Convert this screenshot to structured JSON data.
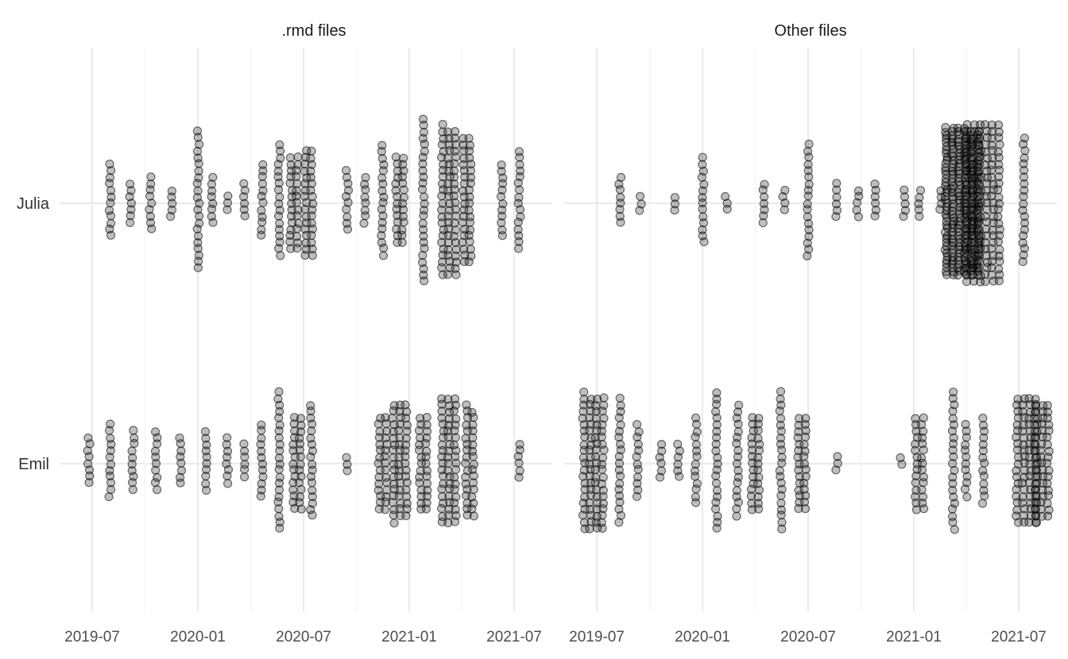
{
  "chart_data": {
    "type": "scatter",
    "variant": "beeswarm",
    "title": "",
    "xlabel": "",
    "ylabel": "",
    "point_color": "#000000",
    "x_tick_labels": [
      "2019-07",
      "2020-01",
      "2020-07",
      "2021-01",
      "2021-07"
    ],
    "y_categories": [
      "Julia",
      "Emil"
    ],
    "xlim": [
      "2019-06-01",
      "2021-08-31"
    ],
    "grid": true,
    "legend": "none",
    "panels": [
      {
        "title": ".rmd files",
        "series": [
          {
            "category": "Julia",
            "clusters": [
              {
                "date": "2019-08-01",
                "count": 12
              },
              {
                "date": "2019-09-05",
                "count": 7
              },
              {
                "date": "2019-10-10",
                "count": 9
              },
              {
                "date": "2019-11-15",
                "count": 5
              },
              {
                "date": "2020-01-01",
                "count": 22
              },
              {
                "date": "2020-01-25",
                "count": 8
              },
              {
                "date": "2020-02-20",
                "count": 3
              },
              {
                "date": "2020-03-20",
                "count": 6
              },
              {
                "date": "2020-04-20",
                "count": 12
              },
              {
                "date": "2020-05-20",
                "count": 18
              },
              {
                "date": "2020-06-15",
                "count": 30
              },
              {
                "date": "2020-07-10",
                "count": 34
              },
              {
                "date": "2020-09-15",
                "count": 10
              },
              {
                "date": "2020-10-15",
                "count": 8
              },
              {
                "date": "2020-11-15",
                "count": 18
              },
              {
                "date": "2020-12-15",
                "count": 28
              },
              {
                "date": "2021-01-25",
                "count": 26
              },
              {
                "date": "2021-03-10",
                "count": 70
              },
              {
                "date": "2021-04-10",
                "count": 40
              },
              {
                "date": "2021-06-10",
                "count": 12
              },
              {
                "date": "2021-07-10",
                "count": 16
              }
            ]
          },
          {
            "category": "Emil",
            "clusters": [
              {
                "date": "2019-06-25",
                "count": 8
              },
              {
                "date": "2019-08-01",
                "count": 12
              },
              {
                "date": "2019-09-10",
                "count": 10
              },
              {
                "date": "2019-10-20",
                "count": 10
              },
              {
                "date": "2019-12-01",
                "count": 8
              },
              {
                "date": "2020-01-15",
                "count": 10
              },
              {
                "date": "2020-02-20",
                "count": 8
              },
              {
                "date": "2020-03-20",
                "count": 6
              },
              {
                "date": "2020-04-20",
                "count": 12
              },
              {
                "date": "2020-05-20",
                "count": 22
              },
              {
                "date": "2020-06-20",
                "count": 30
              },
              {
                "date": "2020-07-15",
                "count": 18
              },
              {
                "date": "2020-09-15",
                "count": 3
              },
              {
                "date": "2020-11-15",
                "count": 30
              },
              {
                "date": "2020-12-15",
                "count": 55
              },
              {
                "date": "2021-01-25",
                "count": 30
              },
              {
                "date": "2021-03-10",
                "count": 60
              },
              {
                "date": "2021-04-15",
                "count": 35
              },
              {
                "date": "2021-07-10",
                "count": 6
              }
            ]
          }
        ]
      },
      {
        "title": "Other files",
        "series": [
          {
            "category": "Julia",
            "clusters": [
              {
                "date": "2019-08-10",
                "count": 8
              },
              {
                "date": "2019-09-15",
                "count": 3
              },
              {
                "date": "2019-11-15",
                "count": 3
              },
              {
                "date": "2020-01-01",
                "count": 14
              },
              {
                "date": "2020-02-10",
                "count": 3
              },
              {
                "date": "2020-04-15",
                "count": 7
              },
              {
                "date": "2020-05-20",
                "count": 4
              },
              {
                "date": "2020-07-01",
                "count": 18
              },
              {
                "date": "2020-08-20",
                "count": 6
              },
              {
                "date": "2020-09-25",
                "count": 5
              },
              {
                "date": "2020-10-25",
                "count": 6
              },
              {
                "date": "2020-12-15",
                "count": 5
              },
              {
                "date": "2021-01-10",
                "count": 5
              },
              {
                "date": "2021-02-15",
                "count": 4
              },
              {
                "date": "2021-03-25",
                "count": 250
              },
              {
                "date": "2021-04-30",
                "count": 150
              },
              {
                "date": "2021-07-10",
                "count": 20
              }
            ]
          },
          {
            "category": "Emil",
            "clusters": [
              {
                "date": "2019-06-25",
                "count": 85
              },
              {
                "date": "2019-08-10",
                "count": 20
              },
              {
                "date": "2019-09-10",
                "count": 12
              },
              {
                "date": "2019-10-20",
                "count": 6
              },
              {
                "date": "2019-11-20",
                "count": 6
              },
              {
                "date": "2019-12-20",
                "count": 14
              },
              {
                "date": "2020-01-25",
                "count": 22
              },
              {
                "date": "2020-03-01",
                "count": 18
              },
              {
                "date": "2020-04-01",
                "count": 30
              },
              {
                "date": "2020-05-15",
                "count": 22
              },
              {
                "date": "2020-06-20",
                "count": 30
              },
              {
                "date": "2020-08-20",
                "count": 3
              },
              {
                "date": "2020-12-10",
                "count": 2
              },
              {
                "date": "2021-01-10",
                "count": 30
              },
              {
                "date": "2021-03-10",
                "count": 22
              },
              {
                "date": "2021-04-01",
                "count": 12
              },
              {
                "date": "2021-05-01",
                "count": 14
              },
              {
                "date": "2021-07-15",
                "count": 80
              },
              {
                "date": "2021-08-10",
                "count": 55
              }
            ]
          }
        ]
      }
    ]
  }
}
